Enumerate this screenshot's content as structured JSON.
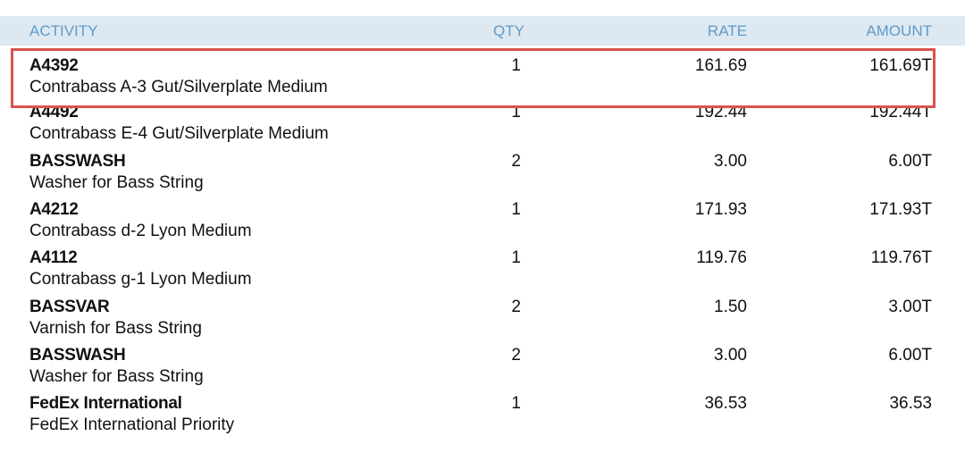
{
  "header": {
    "activity": "ACTIVITY",
    "qty": "QTY",
    "rate": "RATE",
    "amount": "AMOUNT"
  },
  "highlight_color": "#d9534f",
  "rows": [
    {
      "code": "A4392",
      "desc": "Contrabass A-3 Gut/Silverplate Medium",
      "qty": "1",
      "rate": "161.69",
      "amount": "161.69T"
    },
    {
      "code": "A4492",
      "desc": "Contrabass E-4 Gut/Silverplate Medium",
      "qty": "1",
      "rate": "192.44",
      "amount": "192.44T"
    },
    {
      "code": "BASSWASH",
      "desc": "Washer for Bass String",
      "qty": "2",
      "rate": "3.00",
      "amount": "6.00T"
    },
    {
      "code": "A4212",
      "desc": "Contrabass d-2 Lyon Medium",
      "qty": "1",
      "rate": "171.93",
      "amount": "171.93T"
    },
    {
      "code": "A4112",
      "desc": "Contrabass g-1 Lyon Medium",
      "qty": "1",
      "rate": "119.76",
      "amount": "119.76T"
    },
    {
      "code": "BASSVAR",
      "desc": "Varnish for Bass String",
      "qty": "2",
      "rate": "1.50",
      "amount": "3.00T"
    },
    {
      "code": "BASSWASH",
      "desc": "Washer for Bass String",
      "qty": "2",
      "rate": "3.00",
      "amount": "6.00T"
    },
    {
      "code": "FedEx International",
      "desc": "FedEx International Priority",
      "qty": "1",
      "rate": "36.53",
      "amount": "36.53"
    }
  ]
}
